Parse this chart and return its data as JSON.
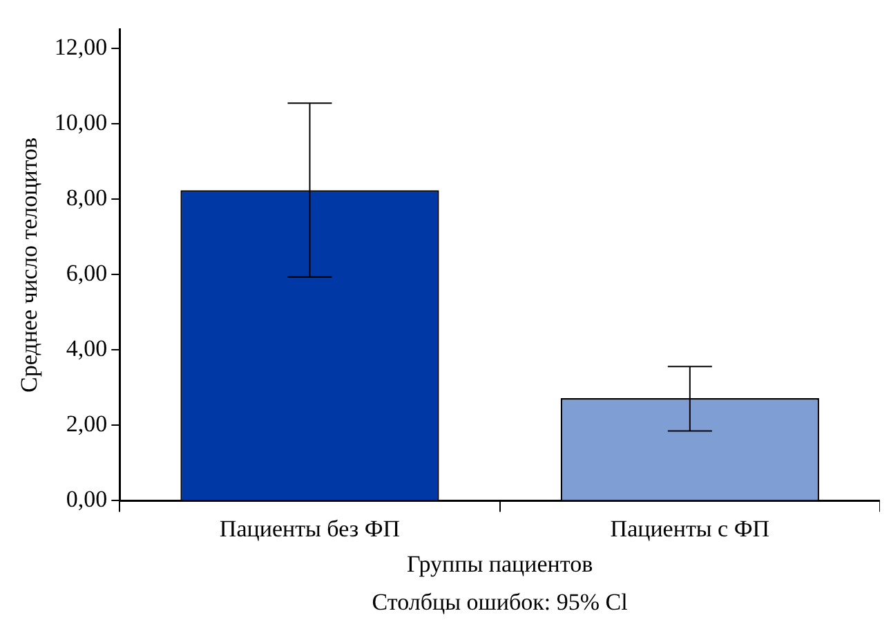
{
  "chart_data": {
    "type": "bar",
    "xlabel": "Группы пациентов",
    "ylabel": "Среднее число телоцитов",
    "categories": [
      "Пациенты без ФП",
      "Пациенты с ФП"
    ],
    "values": [
      8.23,
      2.72
    ],
    "colors": [
      "#0039a6",
      "#7f9fd4"
    ],
    "errors": [
      [
        5.93,
        10.54
      ],
      [
        1.85,
        3.56
      ]
    ],
    "ylim": [
      0,
      12.5
    ],
    "yticks": [
      {
        "value": 0,
        "label": "0,00"
      },
      {
        "value": 2,
        "label": "2,00"
      },
      {
        "value": 4,
        "label": "4,00"
      },
      {
        "value": 6,
        "label": "6,00"
      },
      {
        "value": 8,
        "label": "8,00"
      },
      {
        "value": 10,
        "label": "10,00"
      },
      {
        "value": 12,
        "label": "12,00"
      }
    ],
    "annotations": [
      "Столбцы ошибок: 95% Cl"
    ]
  }
}
